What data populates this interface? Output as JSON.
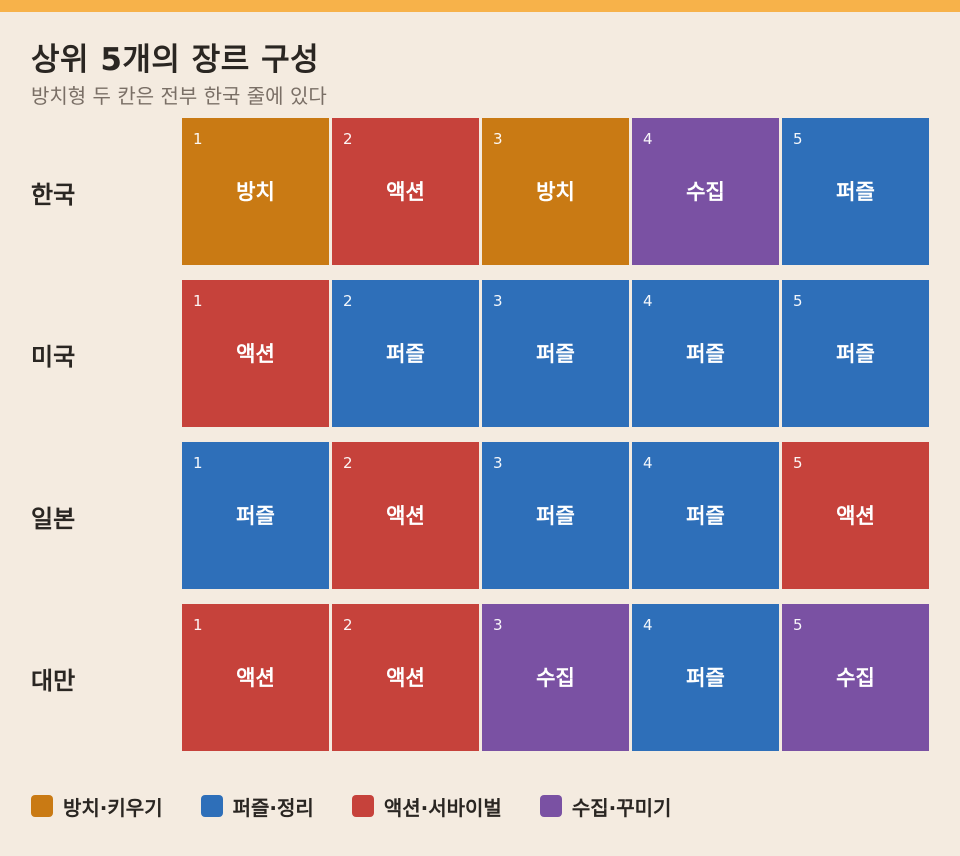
{
  "title": "상위 5개의 장르 구성",
  "subtitle": "방치형 두 칸은 전부 한국 줄에 있다",
  "colors": {
    "accent_bar": "#f7b24a",
    "background": "#f4ebe0",
    "idle": "#c97a14",
    "puzzle": "#2e6fb9",
    "action": "#c6423b",
    "collect": "#7a51a3"
  },
  "legend": [
    {
      "key": "idle",
      "label": "방치·키우기",
      "color": "#c97a14"
    },
    {
      "key": "puzzle",
      "label": "퍼즐·정리",
      "color": "#2e6fb9"
    },
    {
      "key": "action",
      "label": "액션·서바이벌",
      "color": "#c6423b"
    },
    {
      "key": "collect",
      "label": "수집·꾸미기",
      "color": "#7a51a3"
    }
  ],
  "chart_data": {
    "type": "heatmap",
    "title": "상위 5개의 장르 구성",
    "subtitle": "방치형 두 칸은 전부 한국 줄에 있다",
    "columns": [
      "1",
      "2",
      "3",
      "4",
      "5"
    ],
    "rows": [
      {
        "country": "한국",
        "cells": [
          {
            "rank": "1",
            "genre": "방치",
            "category": "idle"
          },
          {
            "rank": "2",
            "genre": "액션",
            "category": "action"
          },
          {
            "rank": "3",
            "genre": "방치",
            "category": "idle"
          },
          {
            "rank": "4",
            "genre": "수집",
            "category": "collect"
          },
          {
            "rank": "5",
            "genre": "퍼즐",
            "category": "puzzle"
          }
        ]
      },
      {
        "country": "미국",
        "cells": [
          {
            "rank": "1",
            "genre": "액션",
            "category": "action"
          },
          {
            "rank": "2",
            "genre": "퍼즐",
            "category": "puzzle"
          },
          {
            "rank": "3",
            "genre": "퍼즐",
            "category": "puzzle"
          },
          {
            "rank": "4",
            "genre": "퍼즐",
            "category": "puzzle"
          },
          {
            "rank": "5",
            "genre": "퍼즐",
            "category": "puzzle"
          }
        ]
      },
      {
        "country": "일본",
        "cells": [
          {
            "rank": "1",
            "genre": "퍼즐",
            "category": "puzzle"
          },
          {
            "rank": "2",
            "genre": "액션",
            "category": "action"
          },
          {
            "rank": "3",
            "genre": "퍼즐",
            "category": "puzzle"
          },
          {
            "rank": "4",
            "genre": "퍼즐",
            "category": "puzzle"
          },
          {
            "rank": "5",
            "genre": "액션",
            "category": "action"
          }
        ]
      },
      {
        "country": "대만",
        "cells": [
          {
            "rank": "1",
            "genre": "액션",
            "category": "action"
          },
          {
            "rank": "2",
            "genre": "액션",
            "category": "action"
          },
          {
            "rank": "3",
            "genre": "수집",
            "category": "collect"
          },
          {
            "rank": "4",
            "genre": "퍼즐",
            "category": "puzzle"
          },
          {
            "rank": "5",
            "genre": "수집",
            "category": "collect"
          }
        ]
      }
    ]
  }
}
